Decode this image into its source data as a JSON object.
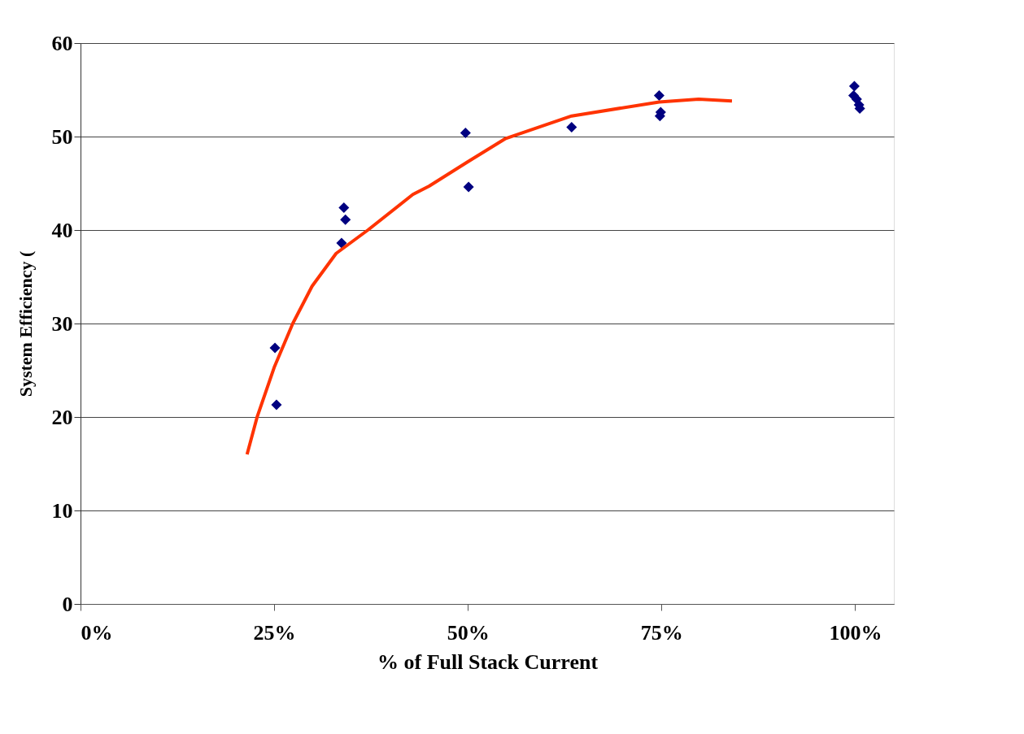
{
  "chart_data": {
    "type": "scatter",
    "xlabel": "% of Full Stack Current",
    "ylabel": "System Efficiency (",
    "xlim": [
      0,
      105
    ],
    "xticks": [
      {
        "value": 0,
        "label": "0%"
      },
      {
        "value": 25,
        "label": "25%"
      },
      {
        "value": 50,
        "label": "50%"
      },
      {
        "value": 75,
        "label": "75%"
      },
      {
        "value": 100,
        "label": "100%"
      }
    ],
    "ylim": [
      0,
      60
    ],
    "yticks": [
      0,
      10,
      20,
      30,
      40,
      50,
      60
    ],
    "grid": "y",
    "series": [
      {
        "marker": "diamond",
        "color": "#000080",
        "x": [
          25.1,
          25.3,
          34.0,
          34.2,
          33.7,
          49.7,
          50.1,
          63.4,
          74.7,
          74.9,
          74.8,
          99.9,
          99.8,
          100.2,
          100.5,
          100.6
        ],
        "values": [
          27.4,
          21.3,
          42.4,
          41.1,
          38.6,
          50.4,
          44.6,
          51.0,
          54.4,
          52.6,
          52.2,
          55.4,
          54.4,
          54.0,
          53.4,
          53.0
        ]
      },
      {
        "type": "line",
        "marker": "none",
        "line_style": "solid",
        "color": "#ff3300",
        "x": [
          21.5,
          22.8,
          25.0,
          27.4,
          29.9,
          33.0,
          37.1,
          42.9,
          45.0,
          50.0,
          54.9,
          63.4,
          74.7,
          79.8,
          84.1
        ],
        "values": [
          16.0,
          20.0,
          25.3,
          30.0,
          34.0,
          37.5,
          40.0,
          43.8,
          44.7,
          47.3,
          49.8,
          52.2,
          53.7,
          54.0,
          53.8
        ]
      }
    ]
  }
}
